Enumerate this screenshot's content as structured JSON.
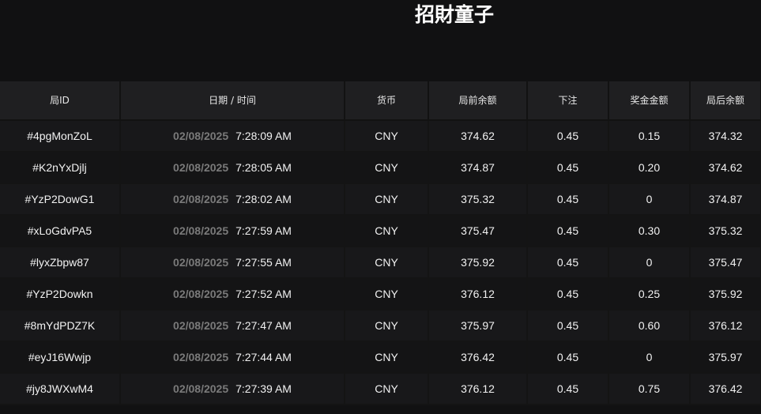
{
  "title": "招財童子",
  "columns": [
    "局ID",
    "日期 / 时间",
    "货币",
    "局前余额",
    "下注",
    "奖金金额",
    "局后余额"
  ],
  "rows": [
    {
      "id": "#4pgMonZoL",
      "date": "02/08/2025",
      "time": "7:28:09 AM",
      "currency": "CNY",
      "before": "374.62",
      "bet": "0.45",
      "prize": "0.15",
      "after": "374.32"
    },
    {
      "id": "#K2nYxDjlj",
      "date": "02/08/2025",
      "time": "7:28:05 AM",
      "currency": "CNY",
      "before": "374.87",
      "bet": "0.45",
      "prize": "0.20",
      "after": "374.62"
    },
    {
      "id": "#YzP2DowG1",
      "date": "02/08/2025",
      "time": "7:28:02 AM",
      "currency": "CNY",
      "before": "375.32",
      "bet": "0.45",
      "prize": "0",
      "after": "374.87"
    },
    {
      "id": "#xLoGdvPA5",
      "date": "02/08/2025",
      "time": "7:27:59 AM",
      "currency": "CNY",
      "before": "375.47",
      "bet": "0.45",
      "prize": "0.30",
      "after": "375.32"
    },
    {
      "id": "#lyxZbpw87",
      "date": "02/08/2025",
      "time": "7:27:55 AM",
      "currency": "CNY",
      "before": "375.92",
      "bet": "0.45",
      "prize": "0",
      "after": "375.47"
    },
    {
      "id": "#YzP2Dowkn",
      "date": "02/08/2025",
      "time": "7:27:52 AM",
      "currency": "CNY",
      "before": "376.12",
      "bet": "0.45",
      "prize": "0.25",
      "after": "375.92"
    },
    {
      "id": "#8mYdPDZ7K",
      "date": "02/08/2025",
      "time": "7:27:47 AM",
      "currency": "CNY",
      "before": "375.97",
      "bet": "0.45",
      "prize": "0.60",
      "after": "376.12"
    },
    {
      "id": "#eyJ16Wwjp",
      "date": "02/08/2025",
      "time": "7:27:44 AM",
      "currency": "CNY",
      "before": "376.42",
      "bet": "0.45",
      "prize": "0",
      "after": "375.97"
    },
    {
      "id": "#jy8JWXwM4",
      "date": "02/08/2025",
      "time": "7:27:39 AM",
      "currency": "CNY",
      "before": "376.12",
      "bet": "0.45",
      "prize": "0.75",
      "after": "376.42"
    }
  ]
}
